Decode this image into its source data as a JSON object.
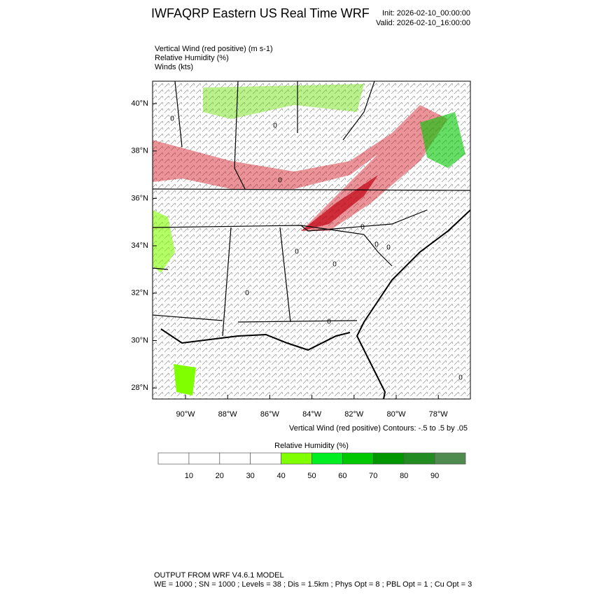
{
  "header": {
    "title": "IWFAQRP Eastern US Real Time WRF",
    "init": "Init: 2026-02-10_00:00:00",
    "valid": "Valid: 2026-02-10_16:00:00"
  },
  "fields": [
    "Vertical Wind (red positive)   (m s-1)",
    "Relative Humidity   (%)",
    "Winds   (kts)"
  ],
  "map": {
    "lat_labels": [
      "40°N",
      "38°N",
      "36°N",
      "34°N",
      "32°N",
      "30°N",
      "28°N"
    ],
    "lon_labels": [
      "90°W",
      "88°W",
      "86°W",
      "84°W",
      "82°W",
      "80°W",
      "78°W"
    ],
    "contour_labels": [
      "0",
      "0",
      "0",
      "0",
      "0",
      "0",
      "0",
      "0",
      "0",
      "0",
      "0"
    ]
  },
  "caption": "Vertical Wind (red positive) Contours: -.5 to .5 by .05",
  "colorbar": {
    "title": "Relative Humidity  (%)",
    "colors": [
      "#ffffff",
      "#ffffff",
      "#ffffff",
      "#ffffff",
      "#80ff00",
      "#00ee22",
      "#00c800",
      "#009600",
      "#228b22",
      "#4f8a4f"
    ],
    "labels": [
      "10",
      "20",
      "30",
      "40",
      "50",
      "60",
      "70",
      "80",
      "90"
    ]
  },
  "footer": [
    "OUTPUT FROM WRF V4.6.1 MODEL",
    "WE = 1000 ; SN = 1000 ; Levels = 38 ; Dis = 1.5km ; Phys Opt = 8 ; PBL Opt = 1 ; Cu Opt = 3"
  ]
}
